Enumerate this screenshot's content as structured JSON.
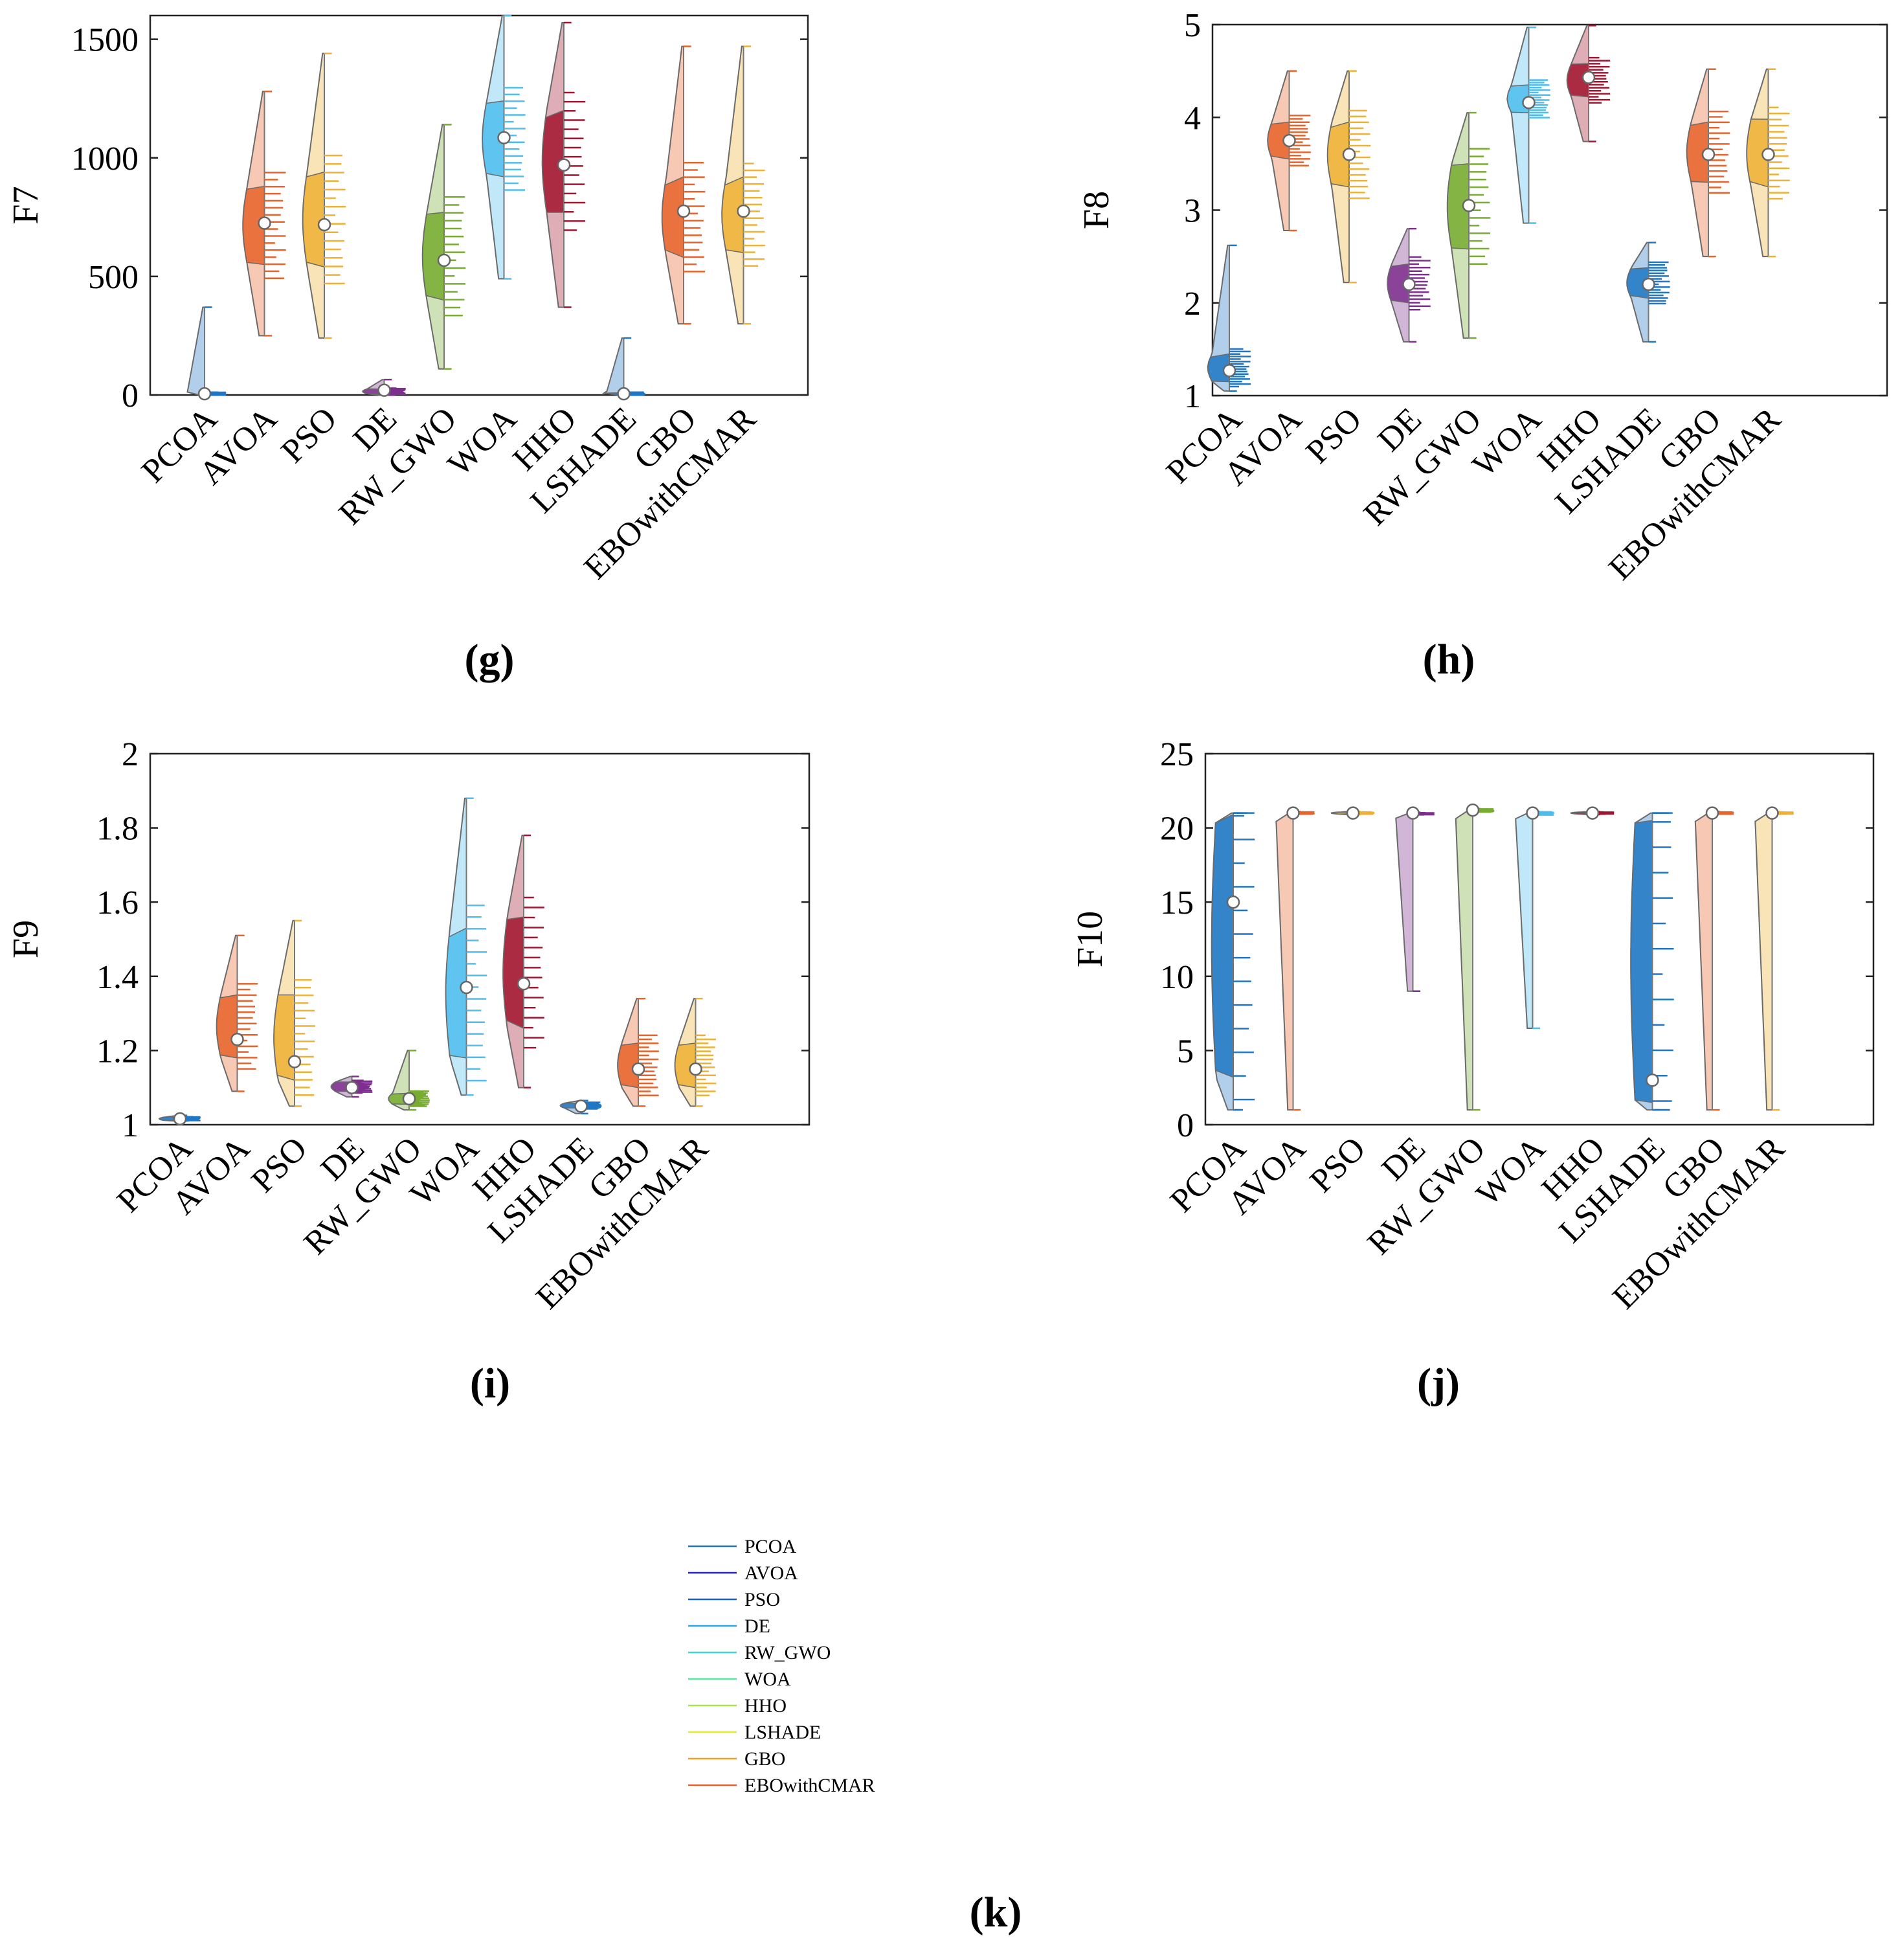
{
  "chart_data": [
    {
      "type": "violin",
      "panel_label": "(g)",
      "ylabel": "F7",
      "ylim": [
        0,
        1600
      ],
      "yticks": [
        0,
        500,
        1000,
        1500
      ],
      "categories": [
        "PCOA",
        "AVOA",
        "PSO",
        "DE",
        "RW_GWO",
        "WOA",
        "HHO",
        "LSHADE",
        "GBO",
        "EBOwithCMAR"
      ],
      "colors": [
        "#1f77c4",
        "#e8632a",
        "#eeb133",
        "#7e2f8e",
        "#77ac30",
        "#4dbeee",
        "#a2142f",
        "#1f77c4",
        "#e8632a",
        "#eeb133"
      ],
      "series": [
        {
          "name": "PCOA",
          "min": 0,
          "q1": 0,
          "median": 5,
          "q3": 10,
          "max": 370,
          "mean": 5
        },
        {
          "name": "AVOA",
          "min": 250,
          "q1": 550,
          "median": 720,
          "q3": 880,
          "max": 1280,
          "mean": 725
        },
        {
          "name": "PSO",
          "min": 240,
          "q1": 540,
          "median": 710,
          "q3": 940,
          "max": 1440,
          "mean": 718
        },
        {
          "name": "DE",
          "min": 0,
          "q1": 5,
          "median": 12,
          "q3": 25,
          "max": 65,
          "mean": 20
        },
        {
          "name": "RW_GWO",
          "min": 110,
          "q1": 400,
          "median": 570,
          "q3": 770,
          "max": 1140,
          "mean": 568
        },
        {
          "name": "WOA",
          "min": 490,
          "q1": 920,
          "median": 1060,
          "q3": 1240,
          "max": 1600,
          "mean": 1085
        },
        {
          "name": "HHO",
          "min": 370,
          "q1": 770,
          "median": 980,
          "q3": 1200,
          "max": 1570,
          "mean": 970
        },
        {
          "name": "LSHADE",
          "min": 0,
          "q1": 0,
          "median": 5,
          "q3": 10,
          "max": 240,
          "mean": 5
        },
        {
          "name": "GBO",
          "min": 300,
          "q1": 580,
          "median": 780,
          "q3": 920,
          "max": 1470,
          "mean": 775
        },
        {
          "name": "EBOwithCMAR",
          "min": 300,
          "q1": 600,
          "median": 780,
          "q3": 920,
          "max": 1470,
          "mean": 775
        }
      ]
    },
    {
      "type": "violin",
      "panel_label": "(h)",
      "ylabel": "F8",
      "ylim": [
        1,
        5
      ],
      "yticks": [
        1,
        2,
        3,
        4,
        5
      ],
      "categories": [
        "PCOA",
        "AVOA",
        "PSO",
        "DE",
        "RW_GWO",
        "WOA",
        "HHO",
        "LSHADE",
        "GBO",
        "EBOwithCMAR"
      ],
      "colors": [
        "#1f77c4",
        "#e8632a",
        "#eeb133",
        "#7e2f8e",
        "#77ac30",
        "#4dbeee",
        "#a2142f",
        "#1f77c4",
        "#e8632a",
        "#eeb133"
      ],
      "series": [
        {
          "name": "PCOA",
          "min": 1.05,
          "q1": 1.15,
          "median": 1.25,
          "q3": 1.45,
          "max": 2.62,
          "mean": 1.27
        },
        {
          "name": "AVOA",
          "min": 2.78,
          "q1": 3.55,
          "median": 3.75,
          "q3": 3.95,
          "max": 4.5,
          "mean": 3.75
        },
        {
          "name": "PSO",
          "min": 2.22,
          "q1": 3.25,
          "median": 3.62,
          "q3": 3.95,
          "max": 4.5,
          "mean": 3.6
        },
        {
          "name": "DE",
          "min": 1.58,
          "q1": 2.0,
          "median": 2.2,
          "q3": 2.42,
          "max": 2.8,
          "mean": 2.2
        },
        {
          "name": "RW_GWO",
          "min": 1.62,
          "q1": 2.58,
          "median": 3.05,
          "q3": 3.5,
          "max": 4.05,
          "mean": 3.05
        },
        {
          "name": "WOA",
          "min": 2.86,
          "q1": 4.05,
          "median": 4.17,
          "q3": 4.35,
          "max": 4.97,
          "mean": 4.16
        },
        {
          "name": "HHO",
          "min": 3.74,
          "q1": 4.22,
          "median": 4.42,
          "q3": 4.58,
          "max": 4.99,
          "mean": 4.43
        },
        {
          "name": "LSHADE",
          "min": 1.58,
          "q1": 2.05,
          "median": 2.22,
          "q3": 2.38,
          "max": 2.65,
          "mean": 2.2
        },
        {
          "name": "GBO",
          "min": 2.5,
          "q1": 3.3,
          "median": 3.62,
          "q3": 3.95,
          "max": 4.52,
          "mean": 3.6
        },
        {
          "name": "EBOwithCMAR",
          "min": 2.5,
          "q1": 3.25,
          "median": 3.62,
          "q3": 3.98,
          "max": 4.52,
          "mean": 3.6
        }
      ]
    },
    {
      "type": "violin",
      "panel_label": "(i)",
      "ylabel": "F9",
      "ylim": [
        1,
        2
      ],
      "yticks": [
        1,
        1.2,
        1.4,
        1.6,
        1.8,
        2
      ],
      "categories": [
        "PCOA",
        "AVOA",
        "PSO",
        "DE",
        "RW_GWO",
        "WOA",
        "HHO",
        "LSHADE",
        "GBO",
        "EBOwithCMAR"
      ],
      "colors": [
        "#1f77c4",
        "#e8632a",
        "#eeb133",
        "#7e2f8e",
        "#77ac30",
        "#4dbeee",
        "#a2142f",
        "#1f77c4",
        "#e8632a",
        "#eeb133"
      ],
      "series": [
        {
          "name": "PCOA",
          "min": 1.01,
          "q1": 1.012,
          "median": 1.016,
          "q3": 1.02,
          "max": 1.025,
          "mean": 1.016
        },
        {
          "name": "AVOA",
          "min": 1.09,
          "q1": 1.18,
          "median": 1.26,
          "q3": 1.35,
          "max": 1.51,
          "mean": 1.23
        },
        {
          "name": "PSO",
          "min": 1.05,
          "q1": 1.12,
          "median": 1.2,
          "q3": 1.35,
          "max": 1.55,
          "mean": 1.17
        },
        {
          "name": "DE",
          "min": 1.075,
          "q1": 1.09,
          "median": 1.1,
          "q3": 1.115,
          "max": 1.13,
          "mean": 1.1
        },
        {
          "name": "RW_GWO",
          "min": 1.04,
          "q1": 1.055,
          "median": 1.065,
          "q3": 1.085,
          "max": 1.2,
          "mean": 1.07
        },
        {
          "name": "WOA",
          "min": 1.08,
          "q1": 1.18,
          "median": 1.35,
          "q3": 1.53,
          "max": 1.88,
          "mean": 1.37
        },
        {
          "name": "HHO",
          "min": 1.1,
          "q1": 1.26,
          "median": 1.4,
          "q3": 1.56,
          "max": 1.78,
          "mean": 1.38
        },
        {
          "name": "LSHADE",
          "min": 1.03,
          "q1": 1.045,
          "median": 1.05,
          "q3": 1.058,
          "max": 1.065,
          "mean": 1.05
        },
        {
          "name": "GBO",
          "min": 1.05,
          "q1": 1.1,
          "median": 1.16,
          "q3": 1.22,
          "max": 1.34,
          "mean": 1.15
        },
        {
          "name": "EBOwithCMAR",
          "min": 1.05,
          "q1": 1.1,
          "median": 1.16,
          "q3": 1.22,
          "max": 1.34,
          "mean": 1.15
        }
      ]
    },
    {
      "type": "violin",
      "panel_label": "(j)",
      "ylabel": "F10",
      "ylim": [
        0,
        25
      ],
      "yticks": [
        0,
        5,
        10,
        15,
        20,
        25
      ],
      "categories": [
        "PCOA",
        "AVOA",
        "PSO",
        "DE",
        "RW_GWO",
        "WOA",
        "HHO",
        "LSHADE",
        "GBO",
        "EBOwithCMAR"
      ],
      "colors": [
        "#1f77c4",
        "#e8632a",
        "#eeb133",
        "#7e2f8e",
        "#77ac30",
        "#4dbeee",
        "#a2142f",
        "#1f77c4",
        "#e8632a",
        "#eeb133"
      ],
      "series": [
        {
          "name": "PCOA",
          "min": 1,
          "q1": 3.2,
          "median": 12.5,
          "q3": 20.9,
          "max": 21,
          "mean": 15
        },
        {
          "name": "AVOA",
          "min": 1,
          "q1": 20.95,
          "median": 21,
          "q3": 21.05,
          "max": 21.1,
          "mean": 21
        },
        {
          "name": "PSO",
          "min": 20.9,
          "q1": 20.95,
          "median": 21,
          "q3": 21.05,
          "max": 21.1,
          "mean": 21
        },
        {
          "name": "DE",
          "min": 9,
          "q1": 20.9,
          "median": 20.95,
          "q3": 21,
          "max": 21.05,
          "mean": 21
        },
        {
          "name": "RW_GWO",
          "min": 1,
          "q1": 21.1,
          "median": 21.2,
          "q3": 21.25,
          "max": 21.3,
          "mean": 21.2
        },
        {
          "name": "WOA",
          "min": 6.5,
          "q1": 20.9,
          "median": 21,
          "q3": 21.05,
          "max": 21.1,
          "mean": 21
        },
        {
          "name": "HHO",
          "min": 20.9,
          "q1": 20.95,
          "median": 21,
          "q3": 21.05,
          "max": 21.1,
          "mean": 21
        },
        {
          "name": "LSHADE",
          "min": 1,
          "q1": 1.5,
          "median": 3,
          "q3": 20.5,
          "max": 21,
          "mean": 3
        },
        {
          "name": "GBO",
          "min": 1,
          "q1": 20.95,
          "median": 21,
          "q3": 21.05,
          "max": 21.1,
          "mean": 21
        },
        {
          "name": "EBOwithCMAR",
          "min": 1,
          "q1": 20.95,
          "median": 21,
          "q3": 21.05,
          "max": 21.1,
          "mean": 21
        }
      ]
    }
  ],
  "legend": {
    "panel_label": "(k)",
    "entries": [
      {
        "label": "PCOA",
        "color": "#1f77b4"
      },
      {
        "label": "AVOA",
        "color": "#2222cc"
      },
      {
        "label": "PSO",
        "color": "#1565c0"
      },
      {
        "label": "DE",
        "color": "#29a6e6"
      },
      {
        "label": "RW_GWO",
        "color": "#3fd6d6"
      },
      {
        "label": "WOA",
        "color": "#55e6a0"
      },
      {
        "label": "HHO",
        "color": "#a8e34d"
      },
      {
        "label": "LSHADE",
        "color": "#e8e830"
      },
      {
        "label": "GBO",
        "color": "#f0a020"
      },
      {
        "label": "EBOwithCMAR",
        "color": "#e8632a"
      }
    ]
  }
}
